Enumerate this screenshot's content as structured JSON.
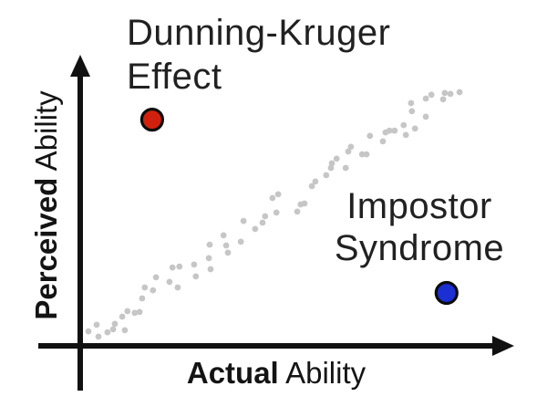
{
  "display": {
    "dunning_kruger": {
      "line1": "Dunning-Kruger",
      "line2": "Effect"
    },
    "impostor": {
      "line1": "Impostor",
      "line2": "Syndrome"
    },
    "x_axis": {
      "bold": "Actual",
      "rest": " Ability"
    },
    "y_axis": {
      "bold": "Perceived",
      "rest": " Ability"
    }
  },
  "colors": {
    "background": "#ffffff",
    "axis": "#111111",
    "text": "#212121",
    "population_dot": "#c6c6c6",
    "dunning_kruger_dot": "#d1210e",
    "impostor_dot": "#1c2fd3",
    "marker_outline": "#0d0d0d"
  },
  "chart_data": {
    "type": "scatter",
    "title": "",
    "xlabel": "Actual Ability",
    "ylabel": "Perceived Ability",
    "xlabel_bold_word": "Actual",
    "ylabel_bold_word": "Perceived",
    "xlim": [
      0,
      100
    ],
    "ylim": [
      0,
      100
    ],
    "grid": false,
    "axis_style": "conceptual arrows, no ticks or tick labels",
    "series": [
      {
        "name": "population-trend",
        "description": "noisy diagonal band where perceived ability tracks actual ability",
        "color": "#c6c6c6",
        "radius_px": 3.4,
        "points": [
          [
            1.9,
            5.0
          ],
          [
            3.8,
            7.3
          ],
          [
            4.2,
            3.2
          ],
          [
            6.3,
            4.7
          ],
          [
            7.6,
            5.7
          ],
          [
            8.0,
            7.6
          ],
          [
            9.7,
            10.1
          ],
          [
            10.3,
            5.4
          ],
          [
            10.9,
            12.0
          ],
          [
            12.6,
            11.4
          ],
          [
            13.7,
            11.7
          ],
          [
            14.3,
            16.4
          ],
          [
            14.9,
            20.2
          ],
          [
            16.8,
            19.2
          ],
          [
            17.5,
            23.7
          ],
          [
            20.6,
            22.1
          ],
          [
            21.3,
            27.1
          ],
          [
            22.5,
            20.2
          ],
          [
            22.9,
            27.4
          ],
          [
            26.3,
            28.1
          ],
          [
            26.7,
            24.0
          ],
          [
            29.7,
            30.3
          ],
          [
            29.9,
            35.0
          ],
          [
            30.1,
            26.5
          ],
          [
            33.1,
            38.2
          ],
          [
            33.7,
            34.7
          ],
          [
            34.1,
            32.2
          ],
          [
            37.1,
            36.0
          ],
          [
            37.7,
            43.2
          ],
          [
            40.4,
            40.4
          ],
          [
            42.1,
            42.6
          ],
          [
            42.7,
            44.8
          ],
          [
            44.4,
            51.1
          ],
          [
            45.3,
            46.1
          ],
          [
            45.7,
            52.4
          ],
          [
            50.1,
            46.4
          ],
          [
            50.9,
            48.9
          ],
          [
            51.8,
            49.2
          ],
          [
            53.5,
            55.2
          ],
          [
            54.3,
            56.8
          ],
          [
            56.8,
            59.0
          ],
          [
            57.9,
            61.5
          ],
          [
            58.1,
            63.1
          ],
          [
            59.2,
            64.7
          ],
          [
            61.3,
            61.5
          ],
          [
            61.9,
            67.2
          ],
          [
            62.5,
            68.8
          ],
          [
            65.1,
            66.2
          ],
          [
            66.1,
            66.2
          ],
          [
            66.9,
            72.6
          ],
          [
            69.9,
            70.7
          ],
          [
            70.5,
            73.8
          ],
          [
            71.4,
            74.4
          ],
          [
            72.6,
            74.4
          ],
          [
            74.7,
            76.3
          ],
          [
            75.2,
            72.9
          ],
          [
            76.4,
            83.9
          ],
          [
            76.6,
            81.1
          ],
          [
            77.3,
            75.1
          ],
          [
            79.8,
            79.2
          ],
          [
            79.8,
            85.5
          ],
          [
            81.1,
            86.8
          ],
          [
            83.8,
            85.2
          ],
          [
            84.2,
            87.4
          ],
          [
            85.5,
            87.1
          ],
          [
            87.6,
            87.7
          ]
        ]
      },
      {
        "name": "dunning-kruger-effect",
        "label": "Dunning-Kruger Effect",
        "color": "#d1210e",
        "stroke": "#0d0d0d",
        "stroke_width_px": 3.2,
        "radius_px": 11.5,
        "points": [
          [
            16.6,
            78.2
          ]
        ]
      },
      {
        "name": "impostor-syndrome",
        "label": "Impostor Syndrome",
        "color": "#1c2fd3",
        "stroke": "#0d0d0d",
        "stroke_width_px": 3.2,
        "radius_px": 11.5,
        "points": [
          [
            84.6,
            18.3
          ]
        ]
      }
    ],
    "annotations": [
      {
        "text": "Dunning-Kruger Effect",
        "anchor_point": [
          16.6,
          78.2
        ],
        "placement": "above marker, left-aligned, top-left of chart"
      },
      {
        "text": "Impostor Syndrome",
        "anchor_point": [
          84.6,
          18.3
        ],
        "placement": "above marker, centered, right side of chart"
      }
    ],
    "legend": false
  }
}
